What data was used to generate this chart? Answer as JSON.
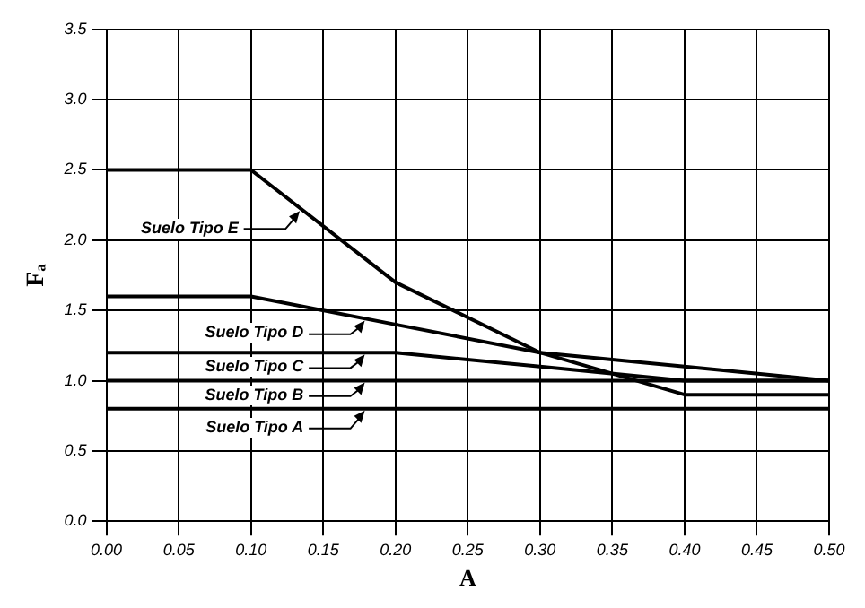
{
  "chart_data": {
    "type": "line",
    "xlabel": "A",
    "ylabel": "Fₐ",
    "xlim": [
      0,
      0.5
    ],
    "xticks": [
      {
        "value": 0,
        "label": "0.00"
      },
      {
        "value": 0.05,
        "label": "0.05"
      },
      {
        "value": 0.1,
        "label": "0.10"
      },
      {
        "value": 0.15,
        "label": "0.15"
      },
      {
        "value": 0.2,
        "label": "0.20"
      },
      {
        "value": 0.25,
        "label": "0.25"
      },
      {
        "value": 0.3,
        "label": "0.30"
      },
      {
        "value": 0.35,
        "label": "0.35"
      },
      {
        "value": 0.4,
        "label": "0.40"
      },
      {
        "value": 0.45,
        "label": "0.45"
      },
      {
        "value": 0.5,
        "label": "0.50"
      }
    ],
    "ylim": [
      0,
      3.5
    ],
    "yticks": [
      {
        "value": 0,
        "label": "0.0"
      },
      {
        "value": 0.5,
        "label": "0.5"
      },
      {
        "value": 1,
        "label": "1.0"
      },
      {
        "value": 1.5,
        "label": "1.5"
      },
      {
        "value": 2,
        "label": "2.0"
      },
      {
        "value": 2.5,
        "label": "2.5"
      },
      {
        "value": 3,
        "label": "3.0"
      },
      {
        "value": 3.5,
        "label": "3.5"
      }
    ],
    "x": [
      0,
      0.1,
      0.2,
      0.3,
      0.4,
      0.5
    ],
    "series": [
      {
        "name": "Suelo Tipo A",
        "color": "#000000",
        "values": [
          0.8,
          0.8,
          0.8,
          0.8,
          0.8,
          0.8
        ]
      },
      {
        "name": "Suelo Tipo B",
        "color": "#000000",
        "values": [
          1.0,
          1.0,
          1.0,
          1.0,
          1.0,
          1.0
        ]
      },
      {
        "name": "Suelo Tipo C",
        "color": "#000000",
        "values": [
          1.2,
          1.2,
          1.2,
          1.1,
          1.0,
          1.0
        ]
      },
      {
        "name": "Suelo Tipo D",
        "color": "#000000",
        "values": [
          1.6,
          1.6,
          1.4,
          1.2,
          1.1,
          1.0
        ]
      },
      {
        "name": "Suelo Tipo E",
        "color": "#000000",
        "values": [
          2.5,
          2.5,
          1.7,
          1.2,
          0.9,
          0.9
        ]
      }
    ],
    "grid": true,
    "legend": "left",
    "marker": "none",
    "line_style": "solid"
  }
}
